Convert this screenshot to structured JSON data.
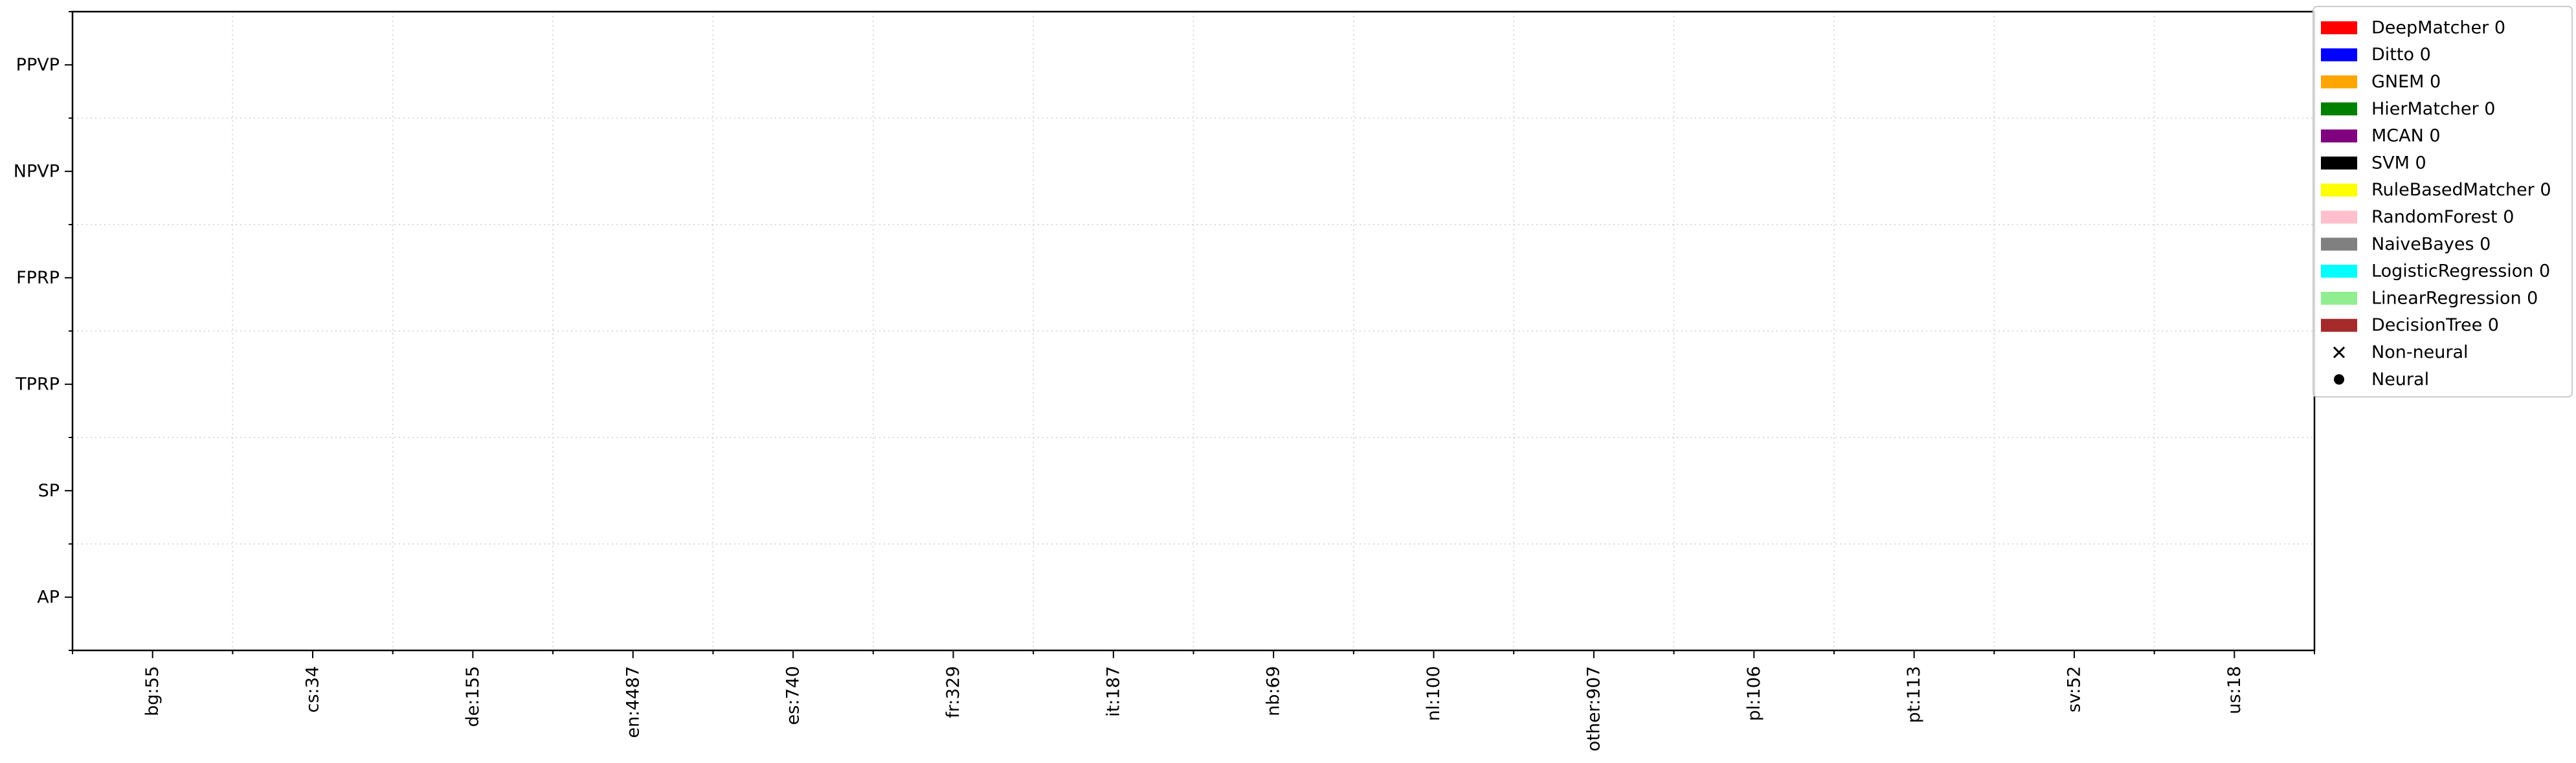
{
  "chart_data": {
    "type": "scatter",
    "title": "",
    "xlabel": "",
    "ylabel": "",
    "categories": [
      "bg:55",
      "cs:34",
      "de:155",
      "en:4487",
      "es:740",
      "fr:329",
      "it:187",
      "nb:69",
      "nl:100",
      "other:907",
      "pl:106",
      "pt:113",
      "sv:52",
      "us:18"
    ],
    "y_categories": [
      "PPVP",
      "NPVP",
      "FPRP",
      "TPRP",
      "SP",
      "AP"
    ],
    "grid": true,
    "grid_style": "dotted",
    "legend_position": "upper right, outside plot",
    "series": [
      {
        "name": "DeepMatcher 0",
        "color": "#ff0000",
        "points": []
      },
      {
        "name": "Ditto 0",
        "color": "#0000ff",
        "points": []
      },
      {
        "name": "GNEM 0",
        "color": "#ffa500",
        "points": []
      },
      {
        "name": "HierMatcher 0",
        "color": "#008000",
        "points": []
      },
      {
        "name": "MCAN 0",
        "color": "#800080",
        "points": []
      },
      {
        "name": "SVM 0",
        "color": "#000000",
        "points": []
      },
      {
        "name": "RuleBasedMatcher 0",
        "color": "#ffff00",
        "points": []
      },
      {
        "name": "RandomForest 0",
        "color": "#ffc0cb",
        "points": []
      },
      {
        "name": "NaiveBayes 0",
        "color": "#808080",
        "points": []
      },
      {
        "name": "LogisticRegression 0",
        "color": "#00ffff",
        "points": []
      },
      {
        "name": "LinearRegression 0",
        "color": "#90ee90",
        "points": []
      },
      {
        "name": "DecisionTree 0",
        "color": "#a52a2a",
        "points": []
      }
    ],
    "marker_legend": [
      {
        "name": "Non-neural",
        "marker": "x"
      },
      {
        "name": "Neural",
        "marker": "o"
      }
    ]
  }
}
